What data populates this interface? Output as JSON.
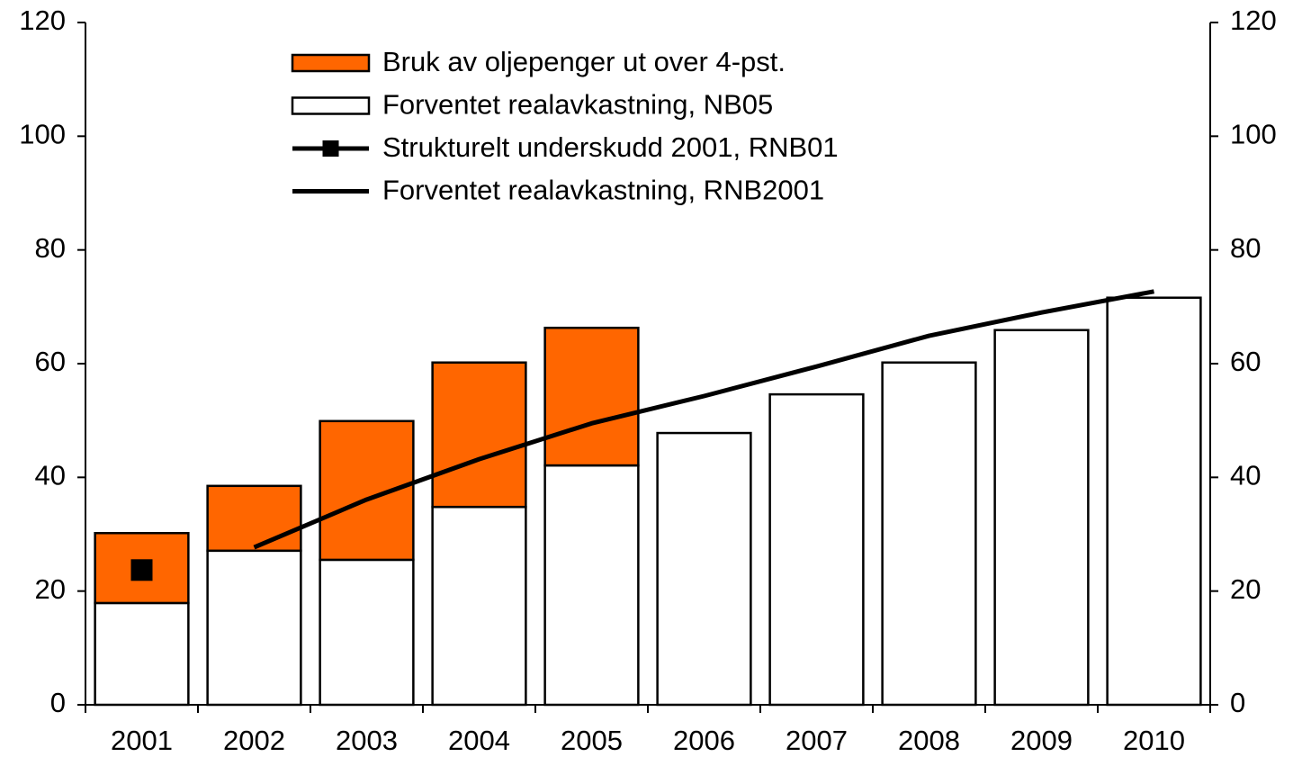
{
  "chart_data": {
    "type": "bar",
    "stacked": true,
    "categories": [
      "2001",
      "2002",
      "2003",
      "2004",
      "2005",
      "2006",
      "2007",
      "2008",
      "2009",
      "2010"
    ],
    "series": [
      {
        "name": "Bruk av oljepenger ut over 4-pst.",
        "type": "bar",
        "color": "#ff6600",
        "values": [
          12.3,
          11.4,
          24.4,
          25.4,
          24.2,
          null,
          null,
          null,
          null,
          null
        ]
      },
      {
        "name": "Forventet realavkastning, NB05",
        "type": "bar",
        "color": "#ffffff",
        "values": [
          17.9,
          27.1,
          25.5,
          34.8,
          42.1,
          47.8,
          54.6,
          60.2,
          65.9,
          71.6
        ]
      },
      {
        "name": "Strukturelt underskudd 2001, RNB01",
        "type": "line",
        "marker": "square",
        "color": "#000000",
        "values": [
          23.7,
          null,
          null,
          null,
          null,
          null,
          null,
          null,
          null,
          null
        ]
      },
      {
        "name": "Forventet realavkastning, RNB2001",
        "type": "line",
        "color": "#000000",
        "values": [
          null,
          27.7,
          36.1,
          43.2,
          49.5,
          54.3,
          59.5,
          64.9,
          69.0,
          72.7
        ]
      }
    ],
    "ylim": [
      0,
      120
    ],
    "yticks": [
      0,
      20,
      40,
      60,
      80,
      100,
      120
    ],
    "y2lim": [
      0,
      120
    ],
    "y2ticks": [
      0,
      20,
      40,
      60,
      80,
      100,
      120
    ],
    "grid": false,
    "legend": "top"
  }
}
